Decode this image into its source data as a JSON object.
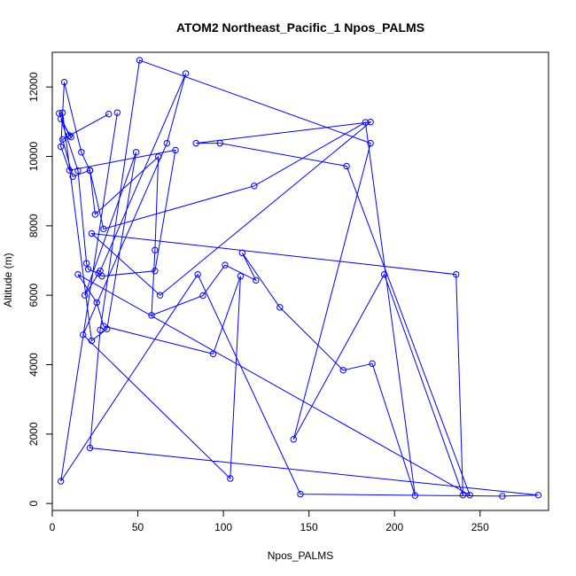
{
  "chart_data": {
    "type": "line",
    "title": "ATOM2 Northeast_Pacific_1 Npos_PALMS",
    "xlabel": "Npos_PALMS",
    "ylabel": "Altitude (m)",
    "xlim": [
      0,
      290
    ],
    "ylim": [
      -200,
      13000
    ],
    "x_ticks": [
      0,
      50,
      100,
      150,
      200,
      250
    ],
    "y_ticks": [
      0,
      2000,
      4000,
      6000,
      8000,
      10000,
      12000
    ],
    "grid": false,
    "legend": "none",
    "marker": "open-circle",
    "color": "#0000ff",
    "series": [
      {
        "x": [
          33,
          10,
          11,
          5,
          15,
          20,
          21,
          27,
          29,
          60,
          72,
          10,
          5,
          7,
          17,
          22,
          30,
          118,
          183,
          212,
          187,
          170,
          133,
          111,
          119,
          101,
          88,
          58,
          60,
          62,
          25,
          22,
          12,
          6,
          10,
          4,
          6,
          23,
          32,
          49,
          19,
          28,
          78,
          67,
          18,
          104,
          110,
          94,
          30,
          26,
          15,
          244,
          172,
          98,
          84,
          186,
          63,
          23,
          236,
          240,
          194,
          141,
          186,
          51,
          28,
          22,
          284,
          263,
          145,
          85,
          5,
          38
        ],
        "y": [
          11220,
          10600,
          10560,
          11080,
          9590,
          6920,
          6750,
          6630,
          6550,
          6700,
          10180,
          9600,
          10280,
          12140,
          10120,
          9590,
          7910,
          9150,
          10980,
          230,
          4030,
          3840,
          5650,
          7220,
          6430,
          6870,
          5990,
          5420,
          7300,
          9990,
          8330,
          9600,
          9420,
          10490,
          10600,
          11240,
          11260,
          4690,
          5030,
          10120,
          6000,
          6700,
          12390,
          10380,
          4860,
          720,
          6550,
          4310,
          5110,
          5790,
          6600,
          240,
          9720,
          10380,
          10380,
          10990,
          6000,
          7780,
          6600,
          240,
          6600,
          1850,
          10380,
          12770,
          5000,
          1600,
          240,
          210,
          270,
          6600,
          640,
          11260
        ]
      }
    ]
  }
}
